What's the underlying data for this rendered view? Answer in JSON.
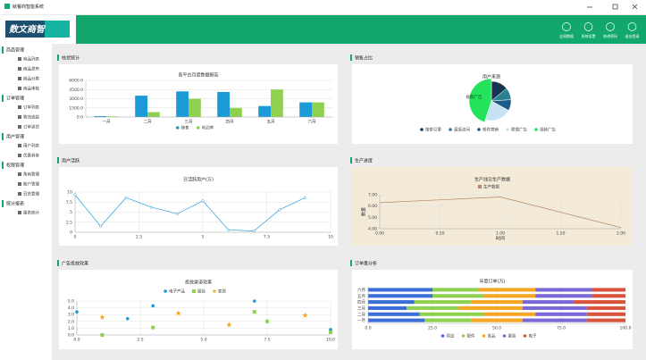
{
  "window_title": "就餐商智能系统",
  "logo": "数文商智",
  "header_actions": [
    "全网数据",
    "系统设置",
    "修改密码",
    "退出登录"
  ],
  "menu": [
    {
      "title": "商品管理",
      "items": [
        "商品列表",
        "商品发布",
        "商品分类",
        "商品审核"
      ]
    },
    {
      "title": "订单管理",
      "items": [
        "订单列表",
        "物流追踪",
        "订单退货"
      ]
    },
    {
      "title": "用户管理",
      "items": [
        "用户列表",
        "优惠券券"
      ]
    },
    {
      "title": "权限管理",
      "items": [
        "角色管理",
        "账户管理",
        "日志管理"
      ]
    },
    {
      "title": "统计报表",
      "items": [
        "报表统计"
      ]
    }
  ],
  "panels": [
    "柱状统计",
    "销售占比",
    "用户活跃",
    "生产进度",
    "广告投放效果",
    "订单量分析"
  ],
  "chart_data": [
    {
      "type": "bar",
      "title": "各平台月度数据报告",
      "categories": [
        "一月",
        "二月",
        "三月",
        "四月",
        "五月",
        "六月"
      ],
      "series": [
        {
          "name": "销售",
          "color": "#1a9ad6",
          "values": [
            150,
            3500,
            4200,
            4100,
            1800,
            2400
          ]
        },
        {
          "name": "利润率",
          "color": "#8fd14f",
          "values": [
            100,
            800,
            3000,
            1500,
            4500,
            2400
          ]
        }
      ],
      "ylim": [
        0,
        6000
      ],
      "yticks": [
        {
          "value": 0,
          "label": "0.0"
        },
        {
          "value": 1500,
          "label": "1500.0"
        },
        {
          "value": 3000,
          "label": "3000.0"
        },
        {
          "value": 4500,
          "label": "4500.0"
        },
        {
          "value": 6000,
          "label": "6000.0"
        }
      ],
      "grid": true,
      "legend": "bottom"
    },
    {
      "type": "pie",
      "title": "用户来源",
      "categories": [
        "搜索引擎",
        "直接访问",
        "邮件营销",
        "联盟广告",
        "视频广告"
      ],
      "values": [
        14,
        10,
        9,
        22,
        45
      ],
      "colors": [
        "#163650",
        "#2a7f93",
        "#1d5b86",
        "#c7e3f1",
        "#22e35a"
      ],
      "legend": "bottom"
    },
    {
      "type": "line",
      "title": "日活跃用户(万)",
      "x": [
        0,
        1,
        2,
        3,
        4,
        5,
        6,
        7,
        8,
        9
      ],
      "series": [
        {
          "name": "日活跃用户",
          "color": "#2a9fd8",
          "values": [
            9.3,
            1.5,
            8.6,
            6.2,
            4.6,
            7.8,
            0.6,
            0.3,
            5.6,
            8.6
          ]
        }
      ],
      "xlim": [
        0,
        10
      ],
      "xticks": [
        0,
        2.5,
        5,
        7.5,
        10
      ],
      "ylim": [
        0,
        10
      ],
      "yticks": [
        0,
        2.5,
        5,
        7.5,
        10
      ],
      "grid": true,
      "markers": true
    },
    {
      "type": "line",
      "title": "生产线日生产数据",
      "x": [
        0,
        1,
        2
      ],
      "series": [
        {
          "name": "生产数据",
          "color": "#b5876a",
          "values": [
            6.3,
            6.8,
            4.1
          ]
        }
      ],
      "xlim": [
        0,
        2
      ],
      "xticks": [
        {
          "value": 0,
          "label": "0.00"
        },
        {
          "value": 0.5,
          "label": "0.50"
        },
        {
          "value": 1,
          "label": "1.00"
        },
        {
          "value": 1.5,
          "label": "1.50"
        },
        {
          "value": 2,
          "label": "2.00"
        }
      ],
      "ylim": [
        4,
        7
      ],
      "yticks": [
        {
          "value": 4,
          "label": "4.00"
        },
        {
          "value": 5,
          "label": "5.00"
        },
        {
          "value": 6,
          "label": "6.00"
        },
        {
          "value": 7,
          "label": "7.00"
        }
      ],
      "xlabel": "时间",
      "ylabel": "数量",
      "grid": true,
      "markers": false,
      "background": "#f3ead8",
      "legend": "top"
    },
    {
      "type": "scatter",
      "title": "投放渠道效果",
      "series": [
        {
          "name": "电子产品",
          "color": "#1a9ad6",
          "marker": "circle",
          "x": [
            0,
            2,
            3,
            7,
            10
          ],
          "values": [
            3.4,
            2.4,
            4.3,
            5,
            0.8
          ]
        },
        {
          "name": "服装",
          "color": "#8fd14f",
          "marker": "square",
          "x": [
            1,
            3,
            7,
            7.5,
            10
          ],
          "values": [
            0,
            1.1,
            3.4,
            2,
            0.4
          ]
        },
        {
          "name": "家居",
          "color": "#f5a623",
          "marker": "star",
          "x": [
            1,
            4,
            6,
            9
          ],
          "values": [
            2.6,
            3.2,
            1.5,
            2.9
          ]
        }
      ],
      "xlim": [
        0,
        10
      ],
      "xticks": [
        {
          "value": 0,
          "label": "0.0"
        },
        {
          "value": 2.5,
          "label": "2.5"
        },
        {
          "value": 5,
          "label": "5.0"
        },
        {
          "value": 7.5,
          "label": "7.5"
        },
        {
          "value": 10,
          "label": "10.0"
        }
      ],
      "ylim": [
        0,
        5
      ],
      "yticks": [
        {
          "value": 0,
          "label": "0.0"
        },
        {
          "value": 1,
          "label": "1.0"
        },
        {
          "value": 2,
          "label": "2.0"
        },
        {
          "value": 3,
          "label": "3.0"
        },
        {
          "value": 4,
          "label": "4.0"
        },
        {
          "value": 5,
          "label": "5.0"
        }
      ],
      "grid": true,
      "legend": "top"
    },
    {
      "type": "bar",
      "orientation": "horizontal",
      "stacked": true,
      "title": "年度订单(万)",
      "categories": [
        "一月",
        "二月",
        "三月",
        "四月",
        "五月",
        "六月"
      ],
      "series": [
        {
          "name": "周边",
          "color": "#3b6fd6",
          "values": [
            22,
            20,
            15,
            18,
            25,
            25
          ]
        },
        {
          "name": "配件",
          "color": "#8fd14f",
          "values": [
            18,
            25,
            20,
            22,
            20,
            18
          ]
        },
        {
          "name": "食品",
          "color": "#f5a623",
          "values": [
            20,
            20,
            25,
            20,
            20,
            22
          ]
        },
        {
          "name": "服装",
          "color": "#7b68d8",
          "values": [
            25,
            20,
            25,
            20,
            22,
            22
          ]
        },
        {
          "name": "电子",
          "color": "#d9543b",
          "values": [
            15,
            15,
            15,
            20,
            13,
            13
          ]
        }
      ],
      "xlim": [
        0,
        100
      ],
      "xticks": [
        {
          "value": 0,
          "label": "0.0"
        },
        {
          "value": 25,
          "label": "25.0"
        },
        {
          "value": 50,
          "label": "50.0"
        },
        {
          "value": 75,
          "label": "75.0"
        },
        {
          "value": 100,
          "label": "100.0"
        }
      ],
      "grid": true,
      "legend": "bottom"
    }
  ]
}
